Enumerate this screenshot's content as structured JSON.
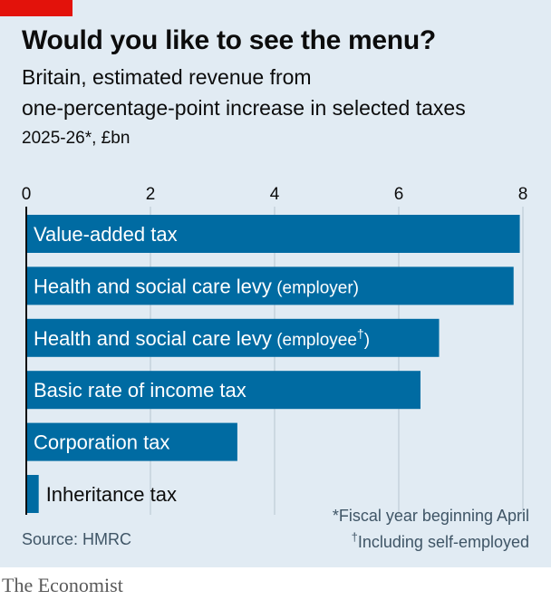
{
  "header": {
    "title": "Would you like to see the menu?",
    "subtitle_line1": "Britain, estimated revenue from",
    "subtitle_line2": "one-percentage-point increase in selected taxes",
    "units": "2025-26*, £bn"
  },
  "chart_data": {
    "type": "bar",
    "orientation": "horizontal",
    "categories": [
      "Value-added tax",
      "Health and social care levy (employer)",
      "Health and social care levy (employee†)",
      "Basic rate of income tax",
      "Corporation tax",
      "Inheritance tax"
    ],
    "label_main": [
      "Value-added tax",
      "Health and social care levy",
      "Health and social care levy",
      "Basic rate of income tax",
      "Corporation tax",
      "Inheritance tax"
    ],
    "label_paren": [
      "",
      "(employer)",
      "(employee",
      "",
      "",
      ""
    ],
    "label_sup": [
      "",
      "",
      "†",
      "",
      "",
      ""
    ],
    "label_close": [
      "",
      "",
      ")",
      "",
      "",
      ""
    ],
    "values": [
      7.95,
      7.85,
      6.65,
      6.35,
      3.4,
      0.2
    ],
    "xlim": [
      0,
      8
    ],
    "x_ticks": [
      0,
      2,
      4,
      6,
      8
    ],
    "grid": true,
    "bar_color": "#006ba2"
  },
  "footer": {
    "footnote_1": "*Fiscal year beginning April",
    "footnote_2_mark": "†",
    "footnote_2": "Including self-employed",
    "source": "Source: HMRC",
    "brand": "The Economist"
  },
  "colors": {
    "background": "#e1ebf3",
    "accent": "#e3120b",
    "bar": "#006ba2"
  }
}
